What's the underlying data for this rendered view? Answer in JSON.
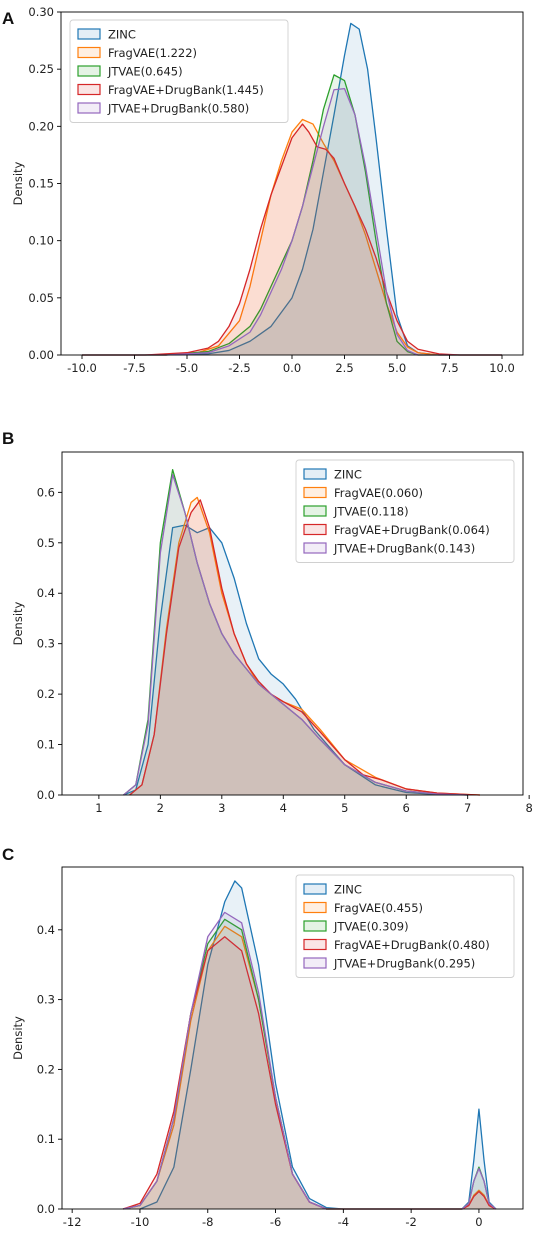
{
  "chart_data": [
    {
      "panel": "A",
      "type": "area",
      "ylabel": "Density",
      "xlabel": "",
      "xlim": [
        -11,
        11
      ],
      "ylim": [
        0,
        0.3
      ],
      "xticks": [
        -10.0,
        -7.5,
        -5.0,
        -2.5,
        0.0,
        2.5,
        5.0,
        7.5,
        10.0
      ],
      "xtick_labels": [
        "-10.0",
        "-7.5",
        "-5.0",
        "-2.5",
        "0.0",
        "2.5",
        "5.0",
        "7.5",
        "10.0"
      ],
      "yticks": [
        0,
        0.05,
        0.1,
        0.15,
        0.2,
        0.25,
        0.3
      ],
      "ytick_labels": [
        "0.00",
        "0.05",
        "0.10",
        "0.15",
        "0.20",
        "0.25",
        "0.30"
      ],
      "legend_position": "top-left",
      "series": [
        {
          "name": "ZINC",
          "color": "#1f77b4",
          "x": [
            -10,
            -6,
            -4,
            -3,
            -2,
            -1,
            0,
            0.5,
            1,
            1.5,
            2,
            2.5,
            2.8,
            3.2,
            3.6,
            4,
            4.5,
            5,
            5.5,
            6,
            7,
            10
          ],
          "y": [
            0,
            0,
            0.001,
            0.004,
            0.012,
            0.025,
            0.05,
            0.075,
            0.11,
            0.16,
            0.21,
            0.262,
            0.29,
            0.285,
            0.25,
            0.19,
            0.11,
            0.035,
            0.008,
            0.002,
            0,
            0
          ]
        },
        {
          "name": "FragVAE(1.222)",
          "color": "#ff7f0e",
          "x": [
            -10,
            -6,
            -4.5,
            -3.5,
            -2.5,
            -2,
            -1.5,
            -1,
            -0.5,
            0,
            0.5,
            1,
            1.5,
            2,
            2.5,
            3,
            3.5,
            4,
            4.5,
            5,
            5.5,
            6,
            7,
            10
          ],
          "y": [
            0,
            0,
            0.002,
            0.008,
            0.03,
            0.06,
            0.1,
            0.14,
            0.17,
            0.195,
            0.206,
            0.202,
            0.185,
            0.17,
            0.15,
            0.13,
            0.105,
            0.075,
            0.045,
            0.02,
            0.007,
            0.002,
            0,
            0
          ]
        },
        {
          "name": "JTVAE(0.645)",
          "color": "#2ca02c",
          "x": [
            -10,
            -6,
            -4,
            -3,
            -2,
            -1.5,
            -1,
            -0.5,
            0,
            0.5,
            1,
            1.5,
            2,
            2.5,
            3,
            3.5,
            4,
            4.5,
            5,
            5.5,
            6,
            10
          ],
          "y": [
            0,
            0,
            0.003,
            0.01,
            0.025,
            0.04,
            0.06,
            0.08,
            0.1,
            0.13,
            0.17,
            0.215,
            0.245,
            0.24,
            0.21,
            0.16,
            0.1,
            0.045,
            0.012,
            0.003,
            0,
            0
          ]
        },
        {
          "name": "FragVAE+DrugBank(1.445)",
          "color": "#d62728",
          "x": [
            -10,
            -7,
            -5,
            -4,
            -3.5,
            -3,
            -2.5,
            -2,
            -1.5,
            -1,
            -0.5,
            0,
            0.5,
            0.8,
            1.2,
            1.6,
            2,
            2.5,
            3,
            3.5,
            4,
            4.5,
            5,
            5.5,
            6,
            7,
            8,
            10
          ],
          "y": [
            0,
            0,
            0.002,
            0.006,
            0.012,
            0.025,
            0.045,
            0.075,
            0.11,
            0.14,
            0.165,
            0.19,
            0.202,
            0.195,
            0.182,
            0.18,
            0.172,
            0.15,
            0.13,
            0.11,
            0.085,
            0.055,
            0.03,
            0.012,
            0.005,
            0.001,
            0,
            0
          ]
        },
        {
          "name": "JTVAE+DrugBank(0.580)",
          "color": "#9467bd",
          "x": [
            -10,
            -6,
            -4,
            -3,
            -2,
            -1.5,
            -1,
            -0.5,
            0,
            0.5,
            1,
            1.5,
            2,
            2.5,
            3,
            3.5,
            4,
            4.5,
            5,
            5.5,
            6,
            10
          ],
          "y": [
            0,
            0,
            0.002,
            0.008,
            0.02,
            0.035,
            0.055,
            0.075,
            0.1,
            0.13,
            0.165,
            0.2,
            0.232,
            0.233,
            0.21,
            0.165,
            0.11,
            0.055,
            0.018,
            0.004,
            0,
            0
          ]
        }
      ]
    },
    {
      "panel": "B",
      "type": "area",
      "ylabel": "Density",
      "xlabel": "",
      "xlim": [
        0.4,
        7.9
      ],
      "ylim": [
        0,
        0.68
      ],
      "xticks": [
        1,
        2,
        3,
        4,
        5,
        6,
        7,
        8
      ],
      "xtick_labels": [
        "1",
        "2",
        "3",
        "4",
        "5",
        "6",
        "7",
        "8"
      ],
      "yticks": [
        0,
        0.1,
        0.2,
        0.3,
        0.4,
        0.5,
        0.6
      ],
      "ytick_labels": [
        "0.0",
        "0.1",
        "0.2",
        "0.3",
        "0.4",
        "0.5",
        "0.6"
      ],
      "legend_position": "top-right",
      "series": [
        {
          "name": "ZINC",
          "color": "#1f77b4",
          "x": [
            1.4,
            1.6,
            1.8,
            2.0,
            2.2,
            2.4,
            2.6,
            2.8,
            3.0,
            3.2,
            3.4,
            3.6,
            3.8,
            4.0,
            4.2,
            4.5,
            5.0,
            5.5,
            6.0,
            6.5,
            7.0
          ],
          "y": [
            0,
            0.01,
            0.1,
            0.35,
            0.53,
            0.535,
            0.52,
            0.53,
            0.5,
            0.43,
            0.34,
            0.27,
            0.24,
            0.22,
            0.19,
            0.13,
            0.06,
            0.02,
            0.005,
            0.001,
            0
          ]
        },
        {
          "name": "FragVAE(0.060)",
          "color": "#ff7f0e",
          "x": [
            1.5,
            1.7,
            1.9,
            2.1,
            2.3,
            2.5,
            2.6,
            2.8,
            3.0,
            3.2,
            3.4,
            3.6,
            3.8,
            4.0,
            4.3,
            4.6,
            5.0,
            5.5,
            6.0,
            6.5,
            7.0,
            7.2
          ],
          "y": [
            0,
            0.02,
            0.12,
            0.33,
            0.5,
            0.58,
            0.59,
            0.52,
            0.4,
            0.32,
            0.26,
            0.22,
            0.2,
            0.185,
            0.17,
            0.13,
            0.07,
            0.035,
            0.012,
            0.004,
            0.001,
            0
          ]
        },
        {
          "name": "JTVAE(0.118)",
          "color": "#2ca02c",
          "x": [
            1.4,
            1.6,
            1.8,
            2.0,
            2.2,
            2.4,
            2.6,
            2.8,
            3.0,
            3.2,
            3.4,
            3.6,
            3.8,
            4.0,
            4.3,
            4.6,
            5.0,
            5.5,
            6.0,
            6.5,
            7.0
          ],
          "y": [
            0,
            0.02,
            0.15,
            0.5,
            0.645,
            0.56,
            0.46,
            0.38,
            0.32,
            0.28,
            0.25,
            0.22,
            0.2,
            0.18,
            0.15,
            0.11,
            0.06,
            0.025,
            0.008,
            0.002,
            0
          ]
        },
        {
          "name": "FragVAE+DrugBank(0.064)",
          "color": "#d62728",
          "x": [
            1.5,
            1.7,
            1.9,
            2.1,
            2.3,
            2.5,
            2.65,
            2.8,
            3.0,
            3.2,
            3.4,
            3.6,
            3.8,
            4.0,
            4.3,
            4.6,
            5.0,
            5.3,
            5.6,
            6.0,
            6.5,
            7.0,
            7.2
          ],
          "y": [
            0,
            0.02,
            0.12,
            0.32,
            0.49,
            0.56,
            0.585,
            0.53,
            0.41,
            0.32,
            0.26,
            0.225,
            0.2,
            0.185,
            0.165,
            0.125,
            0.07,
            0.04,
            0.03,
            0.012,
            0.004,
            0.001,
            0
          ]
        },
        {
          "name": "JTVAE+DrugBank(0.143)",
          "color": "#9467bd",
          "x": [
            1.4,
            1.6,
            1.8,
            2.0,
            2.2,
            2.4,
            2.6,
            2.8,
            3.0,
            3.2,
            3.4,
            3.6,
            3.8,
            4.0,
            4.3,
            4.6,
            5.0,
            5.5,
            6.0,
            6.5,
            7.0
          ],
          "y": [
            0,
            0.02,
            0.14,
            0.48,
            0.635,
            0.56,
            0.46,
            0.38,
            0.32,
            0.28,
            0.25,
            0.22,
            0.2,
            0.18,
            0.15,
            0.11,
            0.06,
            0.025,
            0.008,
            0.002,
            0
          ]
        }
      ]
    },
    {
      "panel": "C",
      "type": "area",
      "ylabel": "Density",
      "xlabel": "",
      "xlim": [
        -12.3,
        1.3
      ],
      "ylim": [
        0,
        0.49
      ],
      "xticks": [
        -12,
        -10,
        -8,
        -6,
        -4,
        -2,
        0
      ],
      "xtick_labels": [
        "-12",
        "-10",
        "-8",
        "-6",
        "-4",
        "-2",
        "0"
      ],
      "yticks": [
        0,
        0.1,
        0.2,
        0.3,
        0.4
      ],
      "ytick_labels": [
        "0.0",
        "0.1",
        "0.2",
        "0.3",
        "0.4"
      ],
      "legend_position": "top-right",
      "series": [
        {
          "name": "ZINC",
          "color": "#1f77b4",
          "x": [
            -10,
            -9.5,
            -9,
            -8.5,
            -8,
            -7.5,
            -7.2,
            -7,
            -6.5,
            -6,
            -5.5,
            -5,
            -4.5,
            -4,
            -0.5,
            -0.3,
            -0.15,
            0,
            0.15,
            0.3,
            0.5
          ],
          "y": [
            0,
            0.01,
            0.06,
            0.2,
            0.35,
            0.44,
            0.47,
            0.46,
            0.35,
            0.18,
            0.06,
            0.015,
            0.002,
            0,
            0,
            0.01,
            0.07,
            0.143,
            0.07,
            0.01,
            0
          ]
        },
        {
          "name": "FragVAE(0.455)",
          "color": "#ff7f0e",
          "x": [
            -10.5,
            -10,
            -9.5,
            -9,
            -8.5,
            -8,
            -7.5,
            -7,
            -6.5,
            -6,
            -5.5,
            -5,
            -4.5,
            -0.5,
            -0.3,
            -0.15,
            0,
            0.15,
            0.3,
            0.5
          ],
          "y": [
            0,
            0.005,
            0.04,
            0.12,
            0.27,
            0.37,
            0.405,
            0.39,
            0.3,
            0.16,
            0.05,
            0.01,
            0,
            0,
            0.005,
            0.02,
            0.027,
            0.02,
            0.005,
            0
          ]
        },
        {
          "name": "JTVAE(0.309)",
          "color": "#2ca02c",
          "x": [
            -10.5,
            -10,
            -9.5,
            -9,
            -8.5,
            -8,
            -7.5,
            -7,
            -6.5,
            -6,
            -5.5,
            -5,
            -4.5,
            -0.5,
            -0.3,
            -0.15,
            0,
            0.15,
            0.3,
            0.5
          ],
          "y": [
            0,
            0.005,
            0.04,
            0.13,
            0.28,
            0.38,
            0.415,
            0.4,
            0.3,
            0.16,
            0.05,
            0.01,
            0,
            0,
            0.008,
            0.04,
            0.06,
            0.04,
            0.008,
            0
          ]
        },
        {
          "name": "FragVAE+DrugBank(0.480)",
          "color": "#d62728",
          "x": [
            -10.5,
            -10,
            -9.5,
            -9,
            -8.5,
            -8,
            -7.5,
            -7,
            -6.5,
            -6,
            -5.5,
            -5,
            -4.5,
            -0.5,
            -0.3,
            -0.15,
            0,
            0.15,
            0.3,
            0.5
          ],
          "y": [
            0,
            0.008,
            0.05,
            0.14,
            0.28,
            0.37,
            0.39,
            0.37,
            0.28,
            0.15,
            0.05,
            0.01,
            0,
            0,
            0.005,
            0.018,
            0.025,
            0.018,
            0.005,
            0
          ]
        },
        {
          "name": "JTVAE+DrugBank(0.295)",
          "color": "#9467bd",
          "x": [
            -10.5,
            -10,
            -9.5,
            -9,
            -8.5,
            -8,
            -7.5,
            -7,
            -6.5,
            -6,
            -5.5,
            -5,
            -4.5,
            -0.5,
            -0.3,
            -0.15,
            0,
            0.15,
            0.3,
            0.5
          ],
          "y": [
            0,
            0.005,
            0.04,
            0.13,
            0.28,
            0.39,
            0.425,
            0.41,
            0.31,
            0.16,
            0.05,
            0.01,
            0,
            0,
            0.008,
            0.04,
            0.058,
            0.04,
            0.008,
            0
          ]
        }
      ]
    }
  ]
}
